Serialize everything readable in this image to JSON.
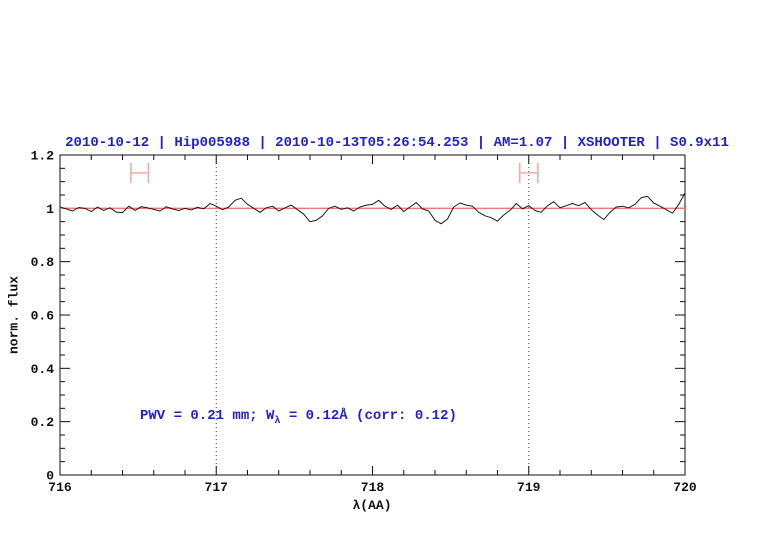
{
  "title": {
    "text": "2010-10-12 | Hip005988 | 2010-10-13T05:26:54.253 | AM=1.07 | XSHOOTER | S0.9x11",
    "color": "#2222cc"
  },
  "annotation": {
    "prefix": "PWV = 0.21 mm; W",
    "subscript": "λ",
    "suffix": " = 0.12Å (corr: 0.12)",
    "color": "#2222cc"
  },
  "axes": {
    "xlabel": "λ(AA)",
    "ylabel": "norm. flux",
    "xlim": [
      716,
      720
    ],
    "ylim": [
      0,
      1.2
    ],
    "x_tick_values": [
      716,
      717,
      718,
      719,
      720
    ],
    "x_tick_labels": [
      "716",
      "717",
      "718",
      "719",
      "720"
    ],
    "x_minor_step": 0.2,
    "y_tick_values": [
      0,
      0.2,
      0.4,
      0.6,
      0.8,
      1,
      1.2
    ],
    "y_tick_labels": [
      "0",
      "0.2",
      "0.4",
      "0.6",
      "0.8",
      "1",
      "1.2"
    ],
    "y_minor_step": 0.05
  },
  "chart_data": {
    "type": "line",
    "title": "2010-10-12 | Hip005988 | 2010-10-13T05:26:54.253 | AM=1.07 | XSHOOTER | S0.9x11",
    "xlabel": "λ(AA)",
    "ylabel": "norm. flux",
    "xlim": [
      716,
      720
    ],
    "ylim": [
      0,
      1.2
    ],
    "grid": false,
    "legend": "none",
    "x_start": 716.0,
    "x_step": 0.04,
    "series": [
      {
        "name": "observed-spectrum",
        "color": "#1a1a1a",
        "flux": [
          1.005,
          0.998,
          0.99,
          1.003,
          1.0,
          0.988,
          1.005,
          0.992,
          1.002,
          0.986,
          0.984,
          1.008,
          0.992,
          1.006,
          1.002,
          0.996,
          0.99,
          1.006,
          0.998,
          0.992,
          1.0,
          0.994,
          1.004,
          0.998,
          1.018,
          1.008,
          0.995,
          1.005,
          1.03,
          1.038,
          1.015,
          1.0,
          0.985,
          1.002,
          1.008,
          0.99,
          1.002,
          1.012,
          0.995,
          0.978,
          0.95,
          0.955,
          0.972,
          1.0,
          1.008,
          0.996,
          1.002,
          0.99,
          1.005,
          1.012,
          1.015,
          1.03,
          1.008,
          0.996,
          1.012,
          0.988,
          1.005,
          1.022,
          0.998,
          0.99,
          0.955,
          0.942,
          0.96,
          1.005,
          1.02,
          1.012,
          1.008,
          0.985,
          0.972,
          0.965,
          0.952,
          0.975,
          0.992,
          1.018,
          0.998,
          1.01,
          0.992,
          0.985,
          1.01,
          1.025,
          1.002,
          1.01,
          1.018,
          1.01,
          1.022,
          0.995,
          0.975,
          0.958,
          0.985,
          1.005,
          1.008,
          1.002,
          1.015,
          1.04,
          1.045,
          1.02,
          1.008,
          0.995,
          0.982,
          1.015,
          1.058
        ]
      },
      {
        "name": "continuum-fit",
        "color": "#ee7777",
        "value": 1.0
      }
    ],
    "vlines": {
      "x": [
        717,
        719
      ],
      "style": "dotted",
      "color": "#444444"
    },
    "markers": {
      "color": "#f5a9a9",
      "items": [
        {
          "x_center": 716.51,
          "x_halfwidth": 0.056,
          "y_center": 1.133,
          "y_halfheight": 0.038
        },
        {
          "x_center": 719.0,
          "x_halfwidth": 0.058,
          "y_center": 1.133,
          "y_halfheight": 0.038
        }
      ]
    }
  }
}
